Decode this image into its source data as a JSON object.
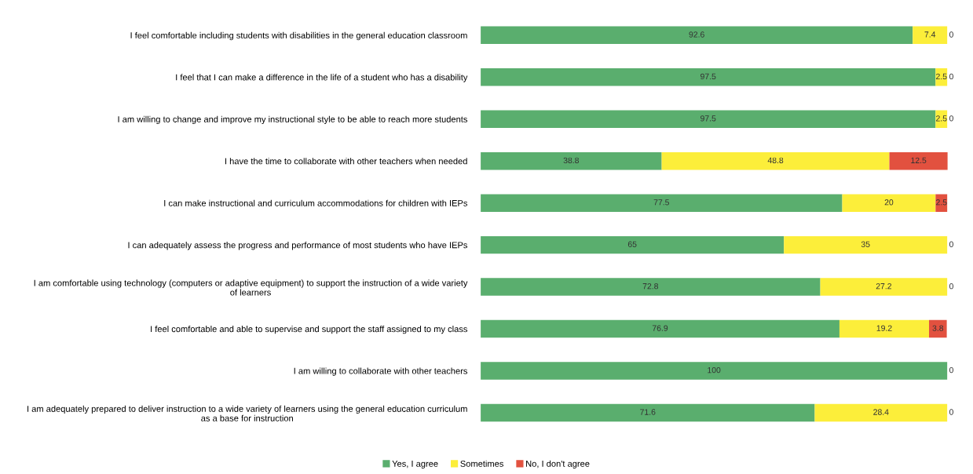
{
  "chart_data": {
    "type": "bar",
    "orientation": "horizontal",
    "stacked": true,
    "legend": "bottom",
    "grid": false,
    "tick_labels": "y",
    "categories": [
      "I feel comfortable including students with disabilities in the general education classroom",
      "I feel that I can make a difference in the life of a student who has a disability",
      "I am willing to change and improve my instructional style to be able to reach more students",
      "I have the time to collaborate with other teachers when needed",
      "I can make instructional and curriculum accommodations for children with IEPs",
      "I can adequately assess the progress and performance of most students who have IEPs",
      "I am comfortable using technology (computers or adaptive equipment) to support the instruction of a wide variety of learners",
      "I feel comfortable and able to supervise and support the staff assigned to my class",
      "I am willing to collaborate with other teachers",
      "I am adequately prepared to deliver instruction to a wide variety of learners using the general education curriculum as a base for instruction"
    ],
    "series": [
      {
        "name": "Yes, I agree",
        "color": "#5aae6e",
        "values": [
          92.6,
          97.5,
          97.5,
          38.8,
          77.5,
          65,
          72.8,
          76.9,
          100,
          71.6
        ],
        "value_labels": [
          "92.6",
          "97.5",
          "97.5",
          "38.8",
          "77.5",
          "65",
          "72.8",
          "76.9",
          "100",
          "71.6"
        ]
      },
      {
        "name": "Sometimes",
        "color": "#fcee3a",
        "values": [
          7.4,
          2.5,
          2.5,
          48.8,
          20,
          35,
          27.2,
          19.2,
          0,
          28.4
        ],
        "value_labels": [
          "7.4",
          "2.5",
          "2.5",
          "48.8",
          "20",
          "35",
          "27.2",
          "19.2",
          null,
          "28.4"
        ]
      },
      {
        "name": "No, I don't agree",
        "color": "#e2513f",
        "values": [
          0,
          0,
          0,
          12.5,
          2.5,
          0,
          0,
          3.8,
          0,
          0
        ],
        "value_labels": [
          "0",
          "0",
          "0",
          "12.5",
          "2.5",
          "0",
          "0",
          "3.8",
          "0",
          "0"
        ]
      }
    ]
  }
}
